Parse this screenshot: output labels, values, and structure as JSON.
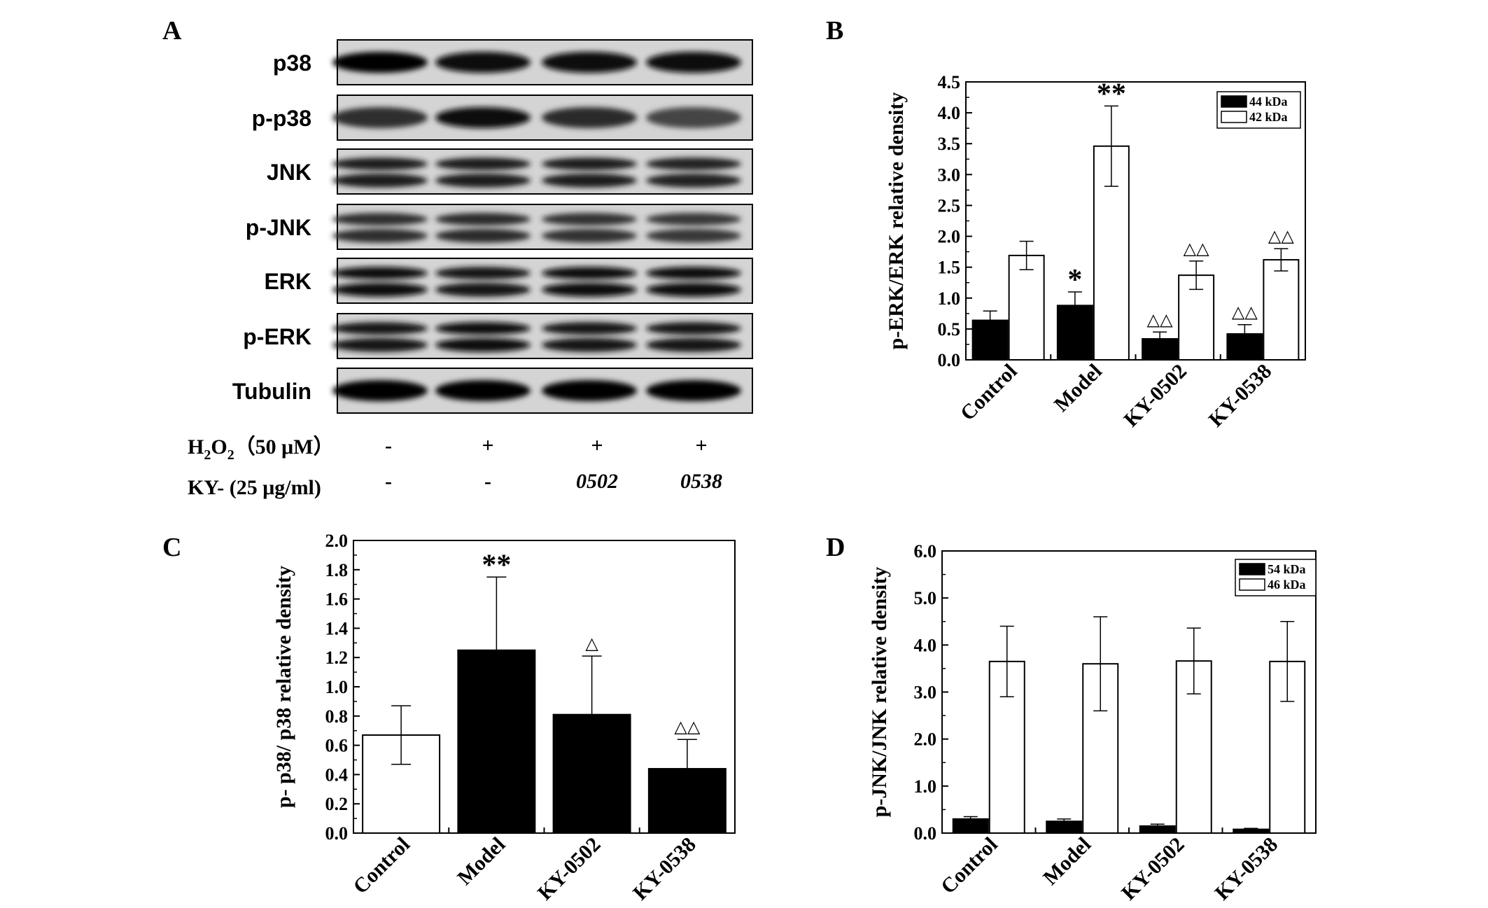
{
  "panel_letters": {
    "a": "A",
    "b": "B",
    "c": "C",
    "d": "D"
  },
  "blot": {
    "rows": [
      {
        "label": "p38"
      },
      {
        "label": "p-p38"
      },
      {
        "label": "JNK"
      },
      {
        "label": "p-JNK"
      },
      {
        "label": "ERK"
      },
      {
        "label": "p-ERK"
      },
      {
        "label": "Tubulin"
      }
    ],
    "treatment_rows": [
      {
        "label_main": "H",
        "label_sub1": "2",
        "label_mid": "O",
        "label_sub2": "2",
        "label_tail": "（50 μM）",
        "values": [
          "-",
          "+",
          "+",
          "+"
        ]
      },
      {
        "label_main": "KY- (25 μg/ml)",
        "values": [
          "-",
          "-",
          "0502",
          "0538"
        ]
      }
    ]
  },
  "chart_data": [
    {
      "panel": "B",
      "type": "bar",
      "ylabel": "p-ERK/ERK relative density",
      "ylim": [
        0,
        4.5
      ],
      "yticks": [
        "0.0",
        "0.5",
        "1.0",
        "1.5",
        "2.0",
        "2.5",
        "3.0",
        "3.5",
        "4.0",
        "4.5"
      ],
      "categories": [
        "Control",
        "Model",
        "KY-0502",
        "KY-0538"
      ],
      "legend_position": "top-right",
      "series": [
        {
          "name": "44 kDa",
          "fill": "#000000",
          "values": [
            0.64,
            0.88,
            0.34,
            0.42
          ],
          "errors": [
            0.15,
            0.22,
            0.11,
            0.15
          ]
        },
        {
          "name": "42 kDa",
          "fill": "#ffffff",
          "values": [
            1.69,
            3.46,
            1.37,
            1.62
          ],
          "errors": [
            0.23,
            0.65,
            0.23,
            0.18
          ]
        }
      ],
      "annotations": [
        {
          "category": 1,
          "series": 0,
          "text": "*"
        },
        {
          "category": 1,
          "series": 1,
          "text": "**"
        },
        {
          "category": 2,
          "series": 0,
          "text": "△△"
        },
        {
          "category": 2,
          "series": 1,
          "text": "△△"
        },
        {
          "category": 3,
          "series": 0,
          "text": "△△"
        },
        {
          "category": 3,
          "series": 1,
          "text": "△△"
        }
      ]
    },
    {
      "panel": "C",
      "type": "bar",
      "ylabel": "p- p38/ p38 relative density",
      "ylim": [
        0,
        2.0
      ],
      "yticks": [
        "0.0",
        "0.2",
        "0.4",
        "0.6",
        "0.8",
        "1.0",
        "1.2",
        "1.4",
        "1.6",
        "1.8",
        "2.0"
      ],
      "categories": [
        "Control",
        "Model",
        "KY-0502",
        "KY-0538"
      ],
      "series": [
        {
          "name": "",
          "fills": [
            "#ffffff",
            "#000000",
            "#000000",
            "#000000"
          ],
          "values": [
            0.67,
            1.25,
            0.81,
            0.44
          ],
          "errors": [
            0.2,
            0.5,
            0.4,
            0.2
          ]
        }
      ],
      "annotations": [
        {
          "category": 1,
          "series": 0,
          "text": "**"
        },
        {
          "category": 2,
          "series": 0,
          "text": "△"
        },
        {
          "category": 3,
          "series": 0,
          "text": "△△"
        }
      ]
    },
    {
      "panel": "D",
      "type": "bar",
      "ylabel": "p-JNK/JNK relative density",
      "ylim": [
        0,
        6.0
      ],
      "yticks": [
        "0.0",
        "1.0",
        "2.0",
        "3.0",
        "4.0",
        "5.0",
        "6.0"
      ],
      "categories": [
        "Control",
        "Model",
        "KY-0502",
        "KY-0538"
      ],
      "legend_position": "top-right",
      "series": [
        {
          "name": "54 kDa",
          "fill": "#000000",
          "values": [
            0.3,
            0.25,
            0.15,
            0.08
          ],
          "errors": [
            0.05,
            0.05,
            0.04,
            0.02
          ]
        },
        {
          "name": "46 kDa",
          "fill": "#ffffff",
          "values": [
            3.65,
            3.6,
            3.66,
            3.65
          ],
          "errors": [
            0.75,
            1.0,
            0.7,
            0.85
          ]
        }
      ],
      "annotations": []
    }
  ]
}
